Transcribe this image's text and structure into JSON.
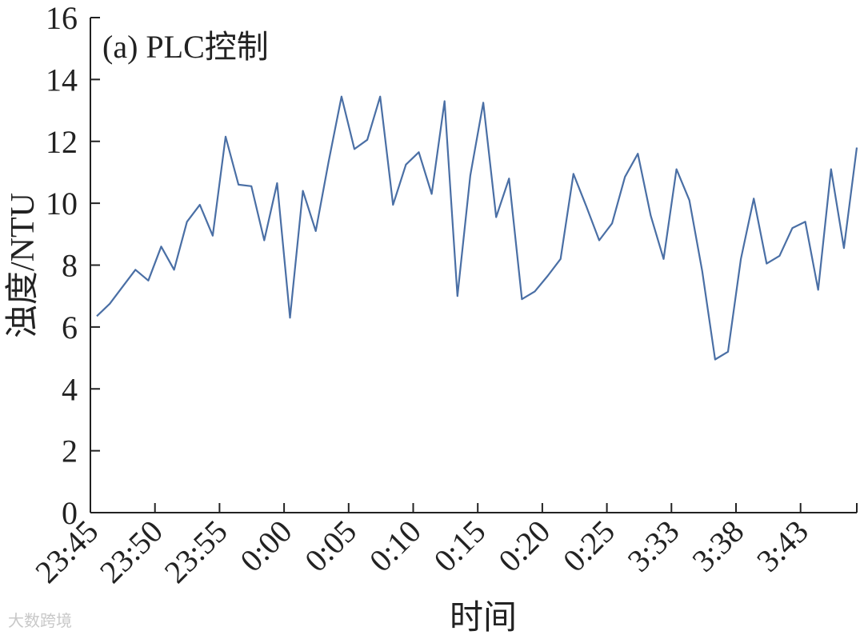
{
  "watermark": "大数跨境",
  "chart_data": {
    "type": "line",
    "panel_label": "(a)  PLC控制",
    "xlabel": "时间",
    "ylabel": "浊度/NTU",
    "ylim": [
      0,
      16
    ],
    "yticks": [
      0,
      2,
      4,
      6,
      8,
      10,
      12,
      14,
      16
    ],
    "xtick_labels": [
      "23:45",
      "23:50",
      "23:55",
      "0:00",
      "0:05",
      "0:10",
      "0:15",
      "0:20",
      "0:25",
      "3:33",
      "3:38",
      "3:43"
    ],
    "series": [
      {
        "color": "#4a6fa5",
        "values": [
          6.35,
          6.75,
          7.3,
          7.85,
          7.5,
          8.6,
          7.85,
          9.4,
          9.95,
          8.95,
          12.15,
          10.6,
          10.55,
          8.8,
          10.65,
          6.3,
          10.4,
          9.1,
          11.35,
          13.45,
          11.75,
          12.05,
          13.45,
          9.95,
          11.25,
          11.65,
          10.3,
          13.3,
          7.0,
          10.9,
          13.25,
          9.55,
          10.8,
          6.9,
          7.15,
          7.65,
          8.2,
          10.95,
          9.9,
          8.8,
          9.35,
          10.85,
          11.6,
          9.6,
          8.2,
          11.1,
          10.1,
          7.8,
          4.95,
          5.2,
          8.2,
          10.15,
          8.05,
          8.3,
          9.2,
          9.4,
          7.2,
          11.1,
          8.55,
          11.8
        ]
      }
    ]
  }
}
